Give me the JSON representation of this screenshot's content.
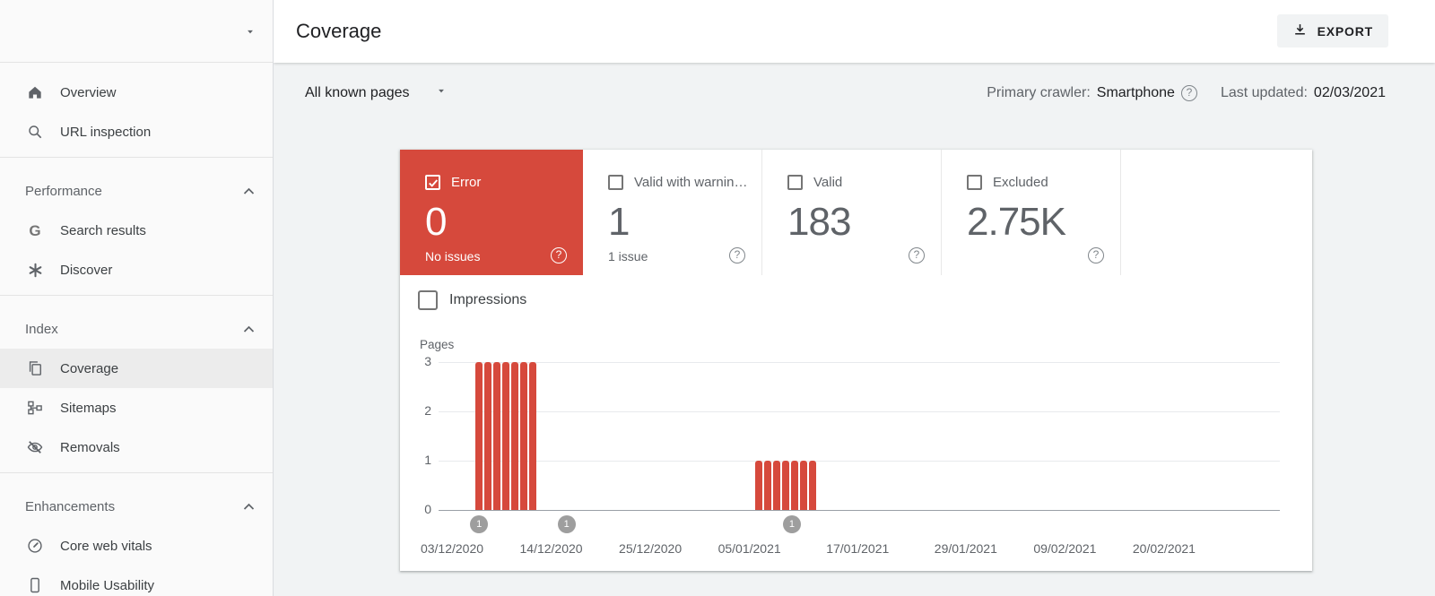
{
  "sidebar": {
    "property_selector": {
      "caret_icon": "chevron-down"
    },
    "top_items": [
      {
        "label": "Overview",
        "icon": "home-icon"
      },
      {
        "label": "URL inspection",
        "icon": "search-icon"
      }
    ],
    "sections": [
      {
        "label": "Performance",
        "items": [
          {
            "label": "Search results",
            "icon": "google-g-icon"
          },
          {
            "label": "Discover",
            "icon": "discover-asterisk-icon"
          }
        ]
      },
      {
        "label": "Index",
        "items": [
          {
            "label": "Coverage",
            "icon": "pages-copy-icon",
            "active": true
          },
          {
            "label": "Sitemaps",
            "icon": "sitemap-tree-icon"
          },
          {
            "label": "Removals",
            "icon": "eye-off-icon"
          }
        ]
      },
      {
        "label": "Enhancements",
        "items": [
          {
            "label": "Core web vitals",
            "icon": "speedometer-icon"
          },
          {
            "label": "Mobile Usability",
            "icon": "phone-icon"
          }
        ]
      }
    ]
  },
  "header": {
    "title": "Coverage",
    "export_label": "EXPORT",
    "export_icon": "download-icon"
  },
  "filter": {
    "scope": "All known pages",
    "crawler_label": "Primary crawler:",
    "crawler_value": "Smartphone",
    "updated_label": "Last updated:",
    "updated_value": "02/03/2021"
  },
  "status_cards": [
    {
      "label": "Error",
      "value": "0",
      "sub": "No issues",
      "checked": true,
      "selected": true
    },
    {
      "label": "Valid with warnin…",
      "value": "1",
      "sub": "1 issue",
      "checked": false
    },
    {
      "label": "Valid",
      "value": "183",
      "sub": "",
      "checked": false
    },
    {
      "label": "Excluded",
      "value": "2.75K",
      "sub": "",
      "checked": false
    }
  ],
  "impressions": {
    "label": "Impressions",
    "checked": false
  },
  "colors": {
    "error_red": "#d6493c",
    "number_gray": "#5f6368",
    "marker_gray": "#9e9e9e",
    "grid_line": "#e8eaed"
  },
  "chart_data": {
    "type": "bar",
    "title": "",
    "xlabel": "",
    "ylabel": "Pages",
    "ylim": [
      0,
      3
    ],
    "yticks": [
      3,
      2,
      1,
      0
    ],
    "grid": true,
    "x_domain_days": [
      -1.5,
      92
    ],
    "xtick_labels": [
      {
        "day": 0,
        "label": "03/12/2020"
      },
      {
        "day": 11,
        "label": "14/12/2020"
      },
      {
        "day": 22,
        "label": "25/12/2020"
      },
      {
        "day": 33,
        "label": "05/01/2021"
      },
      {
        "day": 45,
        "label": "17/01/2021"
      },
      {
        "day": 57,
        "label": "29/01/2021"
      },
      {
        "day": 68,
        "label": "09/02/2021"
      },
      {
        "day": 79,
        "label": "20/02/2021"
      }
    ],
    "series": [
      {
        "name": "Error pages",
        "color": "#d6493c",
        "bars": [
          {
            "day": 3,
            "value": 3
          },
          {
            "day": 4,
            "value": 3
          },
          {
            "day": 5,
            "value": 3
          },
          {
            "day": 6,
            "value": 3
          },
          {
            "day": 7,
            "value": 3
          },
          {
            "day": 8,
            "value": 3
          },
          {
            "day": 9,
            "value": 3
          },
          {
            "day": 34,
            "value": 1
          },
          {
            "day": 35,
            "value": 1
          },
          {
            "day": 36,
            "value": 1
          },
          {
            "day": 37,
            "value": 1
          },
          {
            "day": 38,
            "value": 1
          },
          {
            "day": 39,
            "value": 1
          },
          {
            "day": 40,
            "value": 1
          }
        ]
      }
    ],
    "markers": [
      {
        "day": 3,
        "label": "1"
      },
      {
        "day": 12.7,
        "label": "1"
      },
      {
        "day": 37.7,
        "label": "1"
      }
    ]
  }
}
